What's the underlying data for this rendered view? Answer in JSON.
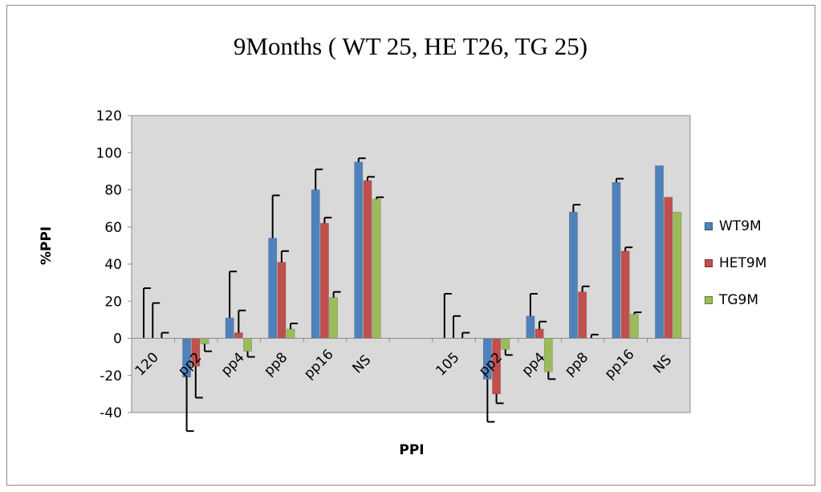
{
  "chart_data": {
    "type": "bar",
    "title": "9Months ( WT 25, HE T26, TG 25)",
    "xlabel": "PPI",
    "ylabel": "%PPI",
    "ylim": [
      -40,
      120
    ],
    "yticks": [
      -40,
      -20,
      0,
      20,
      40,
      60,
      80,
      100,
      120
    ],
    "grid": false,
    "legend_position": "right",
    "categories": [
      "120",
      "pp2",
      "pp4",
      "pp8",
      "pp16",
      "NS",
      "",
      "105",
      "pp2",
      "pp4",
      "pp8",
      "pp16",
      "NS"
    ],
    "series": [
      {
        "name": "WT9M",
        "color": "#4f81bd",
        "values": [
          0,
          -21,
          11,
          54,
          80,
          95,
          null,
          0,
          -22,
          12,
          68,
          84,
          93
        ],
        "error": [
          27,
          29,
          25,
          23,
          11,
          2,
          null,
          24,
          23,
          12,
          4,
          2,
          null
        ]
      },
      {
        "name": "HET9M",
        "color": "#c0504d",
        "values": [
          0,
          -15,
          3,
          41,
          62,
          85,
          null,
          0,
          -30,
          5,
          25,
          47,
          76
        ],
        "error": [
          19,
          17,
          12,
          6,
          3,
          2,
          null,
          12,
          5,
          4,
          3,
          2,
          null
        ]
      },
      {
        "name": "TG9M",
        "color": "#9bbb59",
        "values": [
          0,
          -3,
          -7,
          5,
          22,
          75,
          null,
          0,
          -6,
          -18,
          0,
          13,
          68
        ],
        "error": [
          3,
          4,
          3,
          3,
          3,
          1,
          null,
          3,
          3,
          4,
          2,
          1,
          null
        ]
      }
    ]
  }
}
